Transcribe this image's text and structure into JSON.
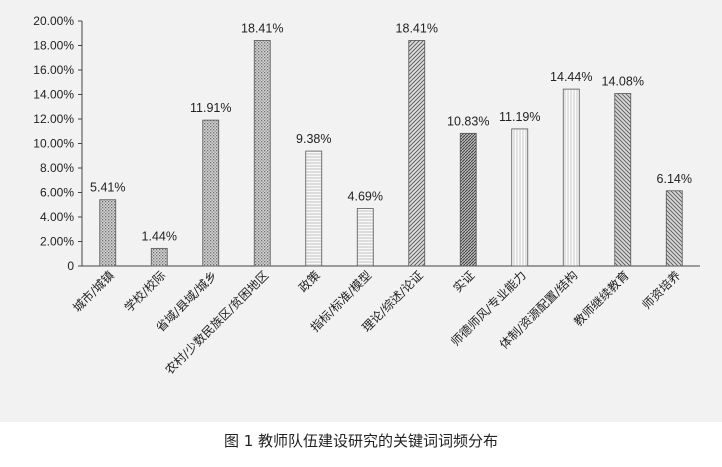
{
  "chart_data": {
    "type": "bar",
    "title": "",
    "xlabel": "",
    "ylabel": "",
    "ylim": [
      0,
      20
    ],
    "yticks": [
      "0",
      "2.00%",
      "4.00%",
      "6.00%",
      "8.00%",
      "10.00%",
      "12.00%",
      "14.00%",
      "16.00%",
      "18.00%",
      "20.00%"
    ],
    "categories": [
      "城市/城镇",
      "学校/校际",
      "省域/县域/城乡",
      "农村/少数民族区/贫困地区",
      "政策",
      "指标/标准/模型",
      "理论/综述/论证",
      "实证",
      "师德师风/专业能力",
      "体制/资源配置/结构",
      "教师继续教育",
      "师资培养"
    ],
    "values": [
      5.41,
      1.44,
      11.91,
      18.41,
      9.38,
      4.69,
      18.41,
      10.83,
      11.19,
      14.44,
      14.08,
      6.14
    ],
    "data_labels": [
      "5.41%",
      "1.44%",
      "11.91%",
      "18.41%",
      "9.38%",
      "4.69%",
      "18.41%",
      "10.83%",
      "11.19%",
      "14.44%",
      "14.08%",
      "6.14%"
    ],
    "patterns": [
      "dots",
      "dots",
      "dots",
      "dots",
      "hlines-light",
      "hlines-light",
      "diag-right",
      "diag-dense",
      "vlines-light",
      "vlines-light",
      "diag-left",
      "diag-left"
    ],
    "grid": false,
    "legend": "none"
  },
  "caption": "图 1   教师队伍建设研究的关键词词频分布"
}
